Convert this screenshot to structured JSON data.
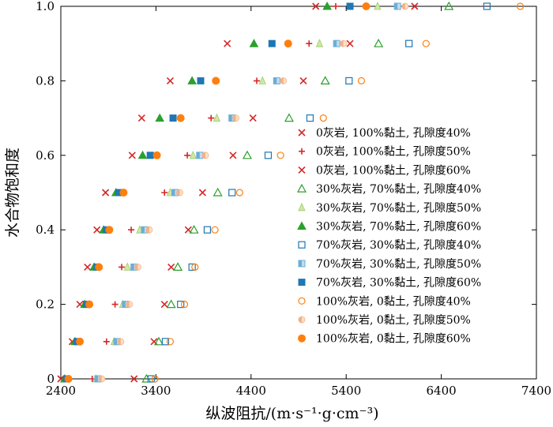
{
  "chart_data": {
    "type": "scatter",
    "title": "",
    "xlabel": "纵波阻抗/(m·s⁻¹·g·cm⁻³)",
    "ylabel": "水合物饱和度",
    "xlim": [
      2400,
      7400
    ],
    "ylim": [
      0,
      1
    ],
    "xticks": [
      2400,
      3400,
      4400,
      5400,
      6400,
      7400
    ],
    "yticks": [
      0,
      0.2,
      0.4,
      0.6,
      0.8,
      1.0
    ],
    "xtick_labels": [
      "2400",
      "3400",
      "4400",
      "5400",
      "6400",
      "7400"
    ],
    "ytick_labels": [
      "0",
      "0.2",
      "0.4",
      "0.6",
      "0.8",
      "1.0"
    ],
    "legend_position": "right",
    "y": [
      0,
      0.1,
      0.2,
      0.3,
      0.4,
      0.5,
      0.6,
      0.7,
      0.8,
      0.9,
      1.0
    ],
    "series": [
      {
        "name": "0灰岩, 100%黏土, 孔隙度40%",
        "marker": "x",
        "color": "#d62728",
        "x": [
          3170,
          3380,
          3490,
          3560,
          3740,
          3890,
          4210,
          4420,
          4950,
          5440,
          6120
        ]
      },
      {
        "name": "0灰岩, 100%黏土, 孔隙度50%",
        "marker": "plus",
        "color": "#d62728",
        "x": [
          2730,
          2880,
          2970,
          3040,
          3140,
          3490,
          3730,
          3980,
          4460,
          5010,
          5290
        ]
      },
      {
        "name": "0灰岩, 100%黏土, 孔隙度60%",
        "marker": "x",
        "color": "#d62728",
        "x": [
          2400,
          2520,
          2600,
          2680,
          2780,
          2870,
          3150,
          3250,
          3550,
          4150,
          5080
        ]
      },
      {
        "name": "30%灰岩, 70%黏土, 孔隙度40%",
        "marker": "triangle-open",
        "color": "#2ca02c",
        "x": [
          3300,
          3430,
          3560,
          3630,
          3800,
          4050,
          4360,
          4800,
          5180,
          5740,
          6480
        ]
      },
      {
        "name": "30%灰岩, 70%黏土, 孔隙度50%",
        "marker": "triangle-faded",
        "color": "#2ca02c",
        "x": [
          2770,
          2960,
          3050,
          3100,
          3230,
          3550,
          3790,
          4040,
          4520,
          5120,
          5730
        ]
      },
      {
        "name": "30%灰岩, 70%黏土, 孔隙度60%",
        "marker": "triangle-filled",
        "color": "#2ca02c",
        "x": [
          2440,
          2550,
          2650,
          2750,
          2850,
          2980,
          3260,
          3440,
          3780,
          4430,
          5200
        ]
      },
      {
        "name": "70%灰岩, 30%黏土, 孔隙度40%",
        "marker": "square-open",
        "color": "#1f77b4",
        "x": [
          3350,
          3500,
          3660,
          3780,
          3940,
          4200,
          4580,
          5020,
          5430,
          6060,
          6880
        ]
      },
      {
        "name": "70%灰岩, 30%黏土, 孔隙度50%",
        "marker": "square-half",
        "color": "#1f77b4",
        "x": [
          2790,
          2990,
          3080,
          3170,
          3280,
          3600,
          3860,
          4200,
          4670,
          5300,
          5940
        ]
      },
      {
        "name": "70%灰岩, 30%黏土, 孔隙度60%",
        "marker": "square-filled",
        "color": "#1f77b4",
        "x": [
          2460,
          2570,
          2670,
          2780,
          2880,
          3010,
          3340,
          3580,
          3870,
          4620,
          5440
        ]
      },
      {
        "name": "100%灰岩, 0黏土, 孔隙度40%",
        "marker": "circle-open",
        "color": "#ff7f0e",
        "x": [
          3390,
          3550,
          3700,
          3810,
          4020,
          4280,
          4710,
          5160,
          5560,
          6240,
          7230
        ]
      },
      {
        "name": "100%灰岩, 0黏土, 孔隙度50%",
        "marker": "circle-half",
        "color": "#ff7f0e",
        "x": [
          2830,
          3030,
          3120,
          3210,
          3330,
          3650,
          3920,
          4240,
          4740,
          5370,
          6020
        ]
      },
      {
        "name": "100%灰岩, 0黏土, 孔隙度60%",
        "marker": "circle-filled",
        "color": "#ff7f0e",
        "x": [
          2480,
          2600,
          2700,
          2800,
          2910,
          3060,
          3410,
          3660,
          4030,
          4790,
          5610
        ]
      }
    ]
  }
}
